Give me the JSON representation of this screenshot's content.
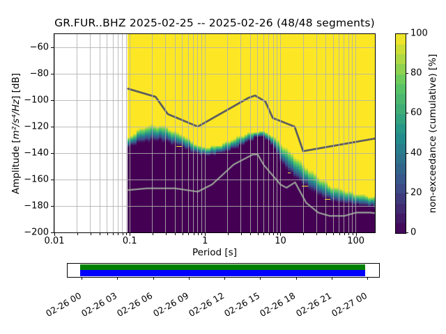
{
  "title": "GR.FUR..BHZ   2025-02-25 -- 2025-02-26  (48/48 segments)",
  "station": "GR.FUR..BHZ",
  "date_range": "2025-02-25 -- 2025-02-26",
  "segments": "48/48 segments",
  "axes": {
    "x": {
      "label": "Period [s]",
      "scale": "log",
      "range": [
        0.01,
        179
      ],
      "ticks": [
        {
          "label": "0.01",
          "period": 0.01
        },
        {
          "label": "0.1",
          "period": 0.1
        },
        {
          "label": "1",
          "period": 1
        },
        {
          "label": "10",
          "period": 10
        },
        {
          "label": "100",
          "period": 100
        }
      ]
    },
    "y": {
      "label": "Amplitude [m²/s⁴/Hz] [dB]",
      "label_parts": [
        {
          "text": "Amplitude [",
          "italic": false
        },
        {
          "text": "m²/s⁴/Hz",
          "italic": true
        },
        {
          "text": "] [dB]",
          "italic": false
        }
      ],
      "range": [
        -200,
        -50
      ],
      "ticks": [
        {
          "label": "−60",
          "value": -60
        },
        {
          "label": "−80",
          "value": -80
        },
        {
          "label": "−100",
          "value": -100
        },
        {
          "label": "−120",
          "value": -120
        },
        {
          "label": "−140",
          "value": -140
        },
        {
          "label": "−160",
          "value": -160
        },
        {
          "label": "−180",
          "value": -180
        },
        {
          "label": "−200",
          "value": -200
        }
      ]
    }
  },
  "colorbar": {
    "label": "non-exceedance (cumulative) [%]",
    "ticks": [
      {
        "label": "0",
        "value": 0
      },
      {
        "label": "20",
        "value": 20
      },
      {
        "label": "40",
        "value": 40
      },
      {
        "label": "60",
        "value": 60
      },
      {
        "label": "80",
        "value": 80
      },
      {
        "label": "100",
        "value": 100
      }
    ],
    "range": [
      0,
      100
    ],
    "steps": 20
  },
  "colors": {
    "viridis_anchors": [
      [
        0.0,
        "#440154"
      ],
      [
        0.25,
        "#3b528b"
      ],
      [
        0.5,
        "#21918c"
      ],
      [
        0.75,
        "#5ec962"
      ],
      [
        1.0,
        "#fde725"
      ]
    ],
    "background_no_data": "#ffffff",
    "grid": "#b0b0b0",
    "nhnm_line": "#5f5f5f",
    "nlnm_line": "#8f8f8f",
    "timeline_green": "#008000",
    "timeline_blue": "#0000ff"
  },
  "chart_data": {
    "type": "heatmap",
    "subtype": "PPSD cumulative non-exceedance",
    "title": "GR.FUR..BHZ   2025-02-25 -- 2025-02-26  (48/48 segments)",
    "xlabel": "Period [s]",
    "x_scale": "log",
    "xlim": [
      0.01,
      179
    ],
    "ylabel": "Amplitude [m²/s⁴/Hz] [dB]",
    "ylim": [
      -200,
      -50
    ],
    "zlabel": "non-exceedance (cumulative) [%]",
    "zlim": [
      0,
      100
    ],
    "data_period_range": [
      0.094,
      179
    ],
    "distribution_envelope": {
      "description": "PSD distribution per period: db_min = level below which 0% of segments fall (dark purple below), db_max = level reached by 100% of segments (yellow above)",
      "periods": [
        0.094,
        0.12,
        0.15,
        0.2,
        0.28,
        0.4,
        0.55,
        0.7,
        1.0,
        1.4,
        2.0,
        3.0,
        4.0,
        5.0,
        6.5,
        8.0,
        10,
        13,
        16,
        20,
        25,
        32,
        40,
        50,
        65,
        80,
        100,
        130,
        179
      ],
      "db_max": [
        -129,
        -124,
        -120.5,
        -118.5,
        -119.5,
        -123.5,
        -127.5,
        -132,
        -136,
        -134,
        -131,
        -127,
        -124.5,
        -123,
        -124,
        -127.5,
        -132.5,
        -138.5,
        -142.5,
        -148,
        -153,
        -158,
        -162,
        -165.5,
        -167.5,
        -169,
        -170.5,
        -171.5,
        -172.5
      ],
      "db_min": [
        -137,
        -133,
        -131.5,
        -131,
        -131,
        -134,
        -137,
        -139.5,
        -142,
        -141,
        -139,
        -135,
        -130.5,
        -127.5,
        -129.5,
        -134,
        -146,
        -155,
        -159,
        -164,
        -168,
        -172,
        -175,
        -177,
        -178,
        -179,
        -179.5,
        -180,
        -181
      ]
    },
    "noise_models": [
      {
        "name": "NHNM (Peterson high noise model)",
        "periods": [
          0.095,
          0.22,
          0.32,
          0.8,
          3.8,
          4.6,
          6.3,
          7.9,
          15.4,
          20.0,
          179.0
        ],
        "db": [
          -91.3,
          -97.4,
          -110.5,
          -120.0,
          -98.1,
          -96.5,
          -101.0,
          -113.5,
          -120.0,
          -138.5,
          -129.0
        ]
      },
      {
        "name": "NLNM (Peterson low noise model)",
        "periods": [
          0.095,
          0.17,
          0.4,
          0.8,
          1.24,
          2.4,
          4.3,
          5.0,
          6.0,
          10.0,
          12.0,
          15.6,
          21.9,
          31.6,
          45.0,
          70.0,
          101.0,
          154.0,
          179.0
        ],
        "db": [
          -168.0,
          -166.7,
          -166.7,
          -169.2,
          -163.7,
          -148.6,
          -141.1,
          -141.1,
          -149.0,
          -163.8,
          -166.2,
          -162.1,
          -177.5,
          -185.0,
          -187.5,
          -187.5,
          -185.0,
          -185.0,
          -185.4
        ]
      }
    ]
  },
  "timeline": {
    "tick_labels": [
      "02-26 00",
      "02-26 03",
      "02-26 06",
      "02-26 09",
      "02-26 12",
      "02-26 15",
      "02-26 18",
      "02-26 21",
      "02-27 00"
    ],
    "stripes": [
      {
        "name": "processed-coverage",
        "color": "#008000"
      },
      {
        "name": "data-availability",
        "color": "#0000ff"
      }
    ]
  }
}
